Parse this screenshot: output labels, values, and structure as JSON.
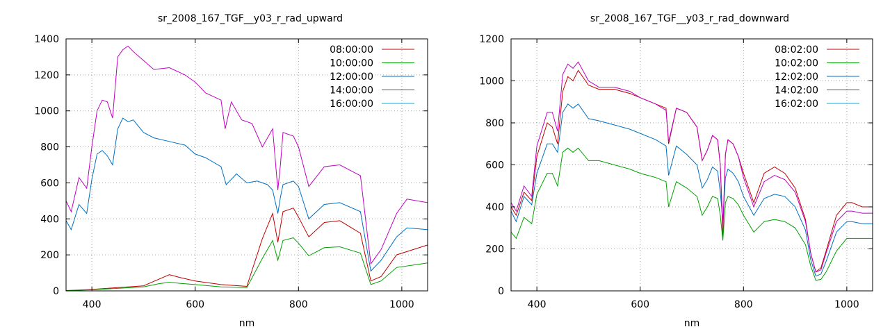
{
  "chart_data": [
    {
      "type": "line",
      "title": "sr_2008_167_TGF__y03_r_rad_upward",
      "xlabel": "nm",
      "ylabel": "",
      "xlim": [
        350,
        1050
      ],
      "ylim": [
        0,
        1400
      ],
      "xticks": [
        400,
        600,
        800,
        1000
      ],
      "yticks": [
        0,
        200,
        400,
        600,
        800,
        1000,
        1200,
        1400
      ],
      "grid": true,
      "legend_position": "top-right",
      "series": [
        {
          "name": "08:00:00",
          "color": "#c00000",
          "x": [
            350,
            400,
            450,
            500,
            530,
            550,
            570,
            600,
            650,
            700,
            730,
            750,
            760,
            770,
            790,
            800,
            820,
            850,
            880,
            920,
            940,
            960,
            990,
            1050
          ],
          "y": [
            2,
            8,
            18,
            28,
            65,
            90,
            75,
            55,
            35,
            25,
            290,
            430,
            270,
            440,
            460,
            410,
            300,
            380,
            390,
            320,
            55,
            80,
            200,
            255
          ]
        },
        {
          "name": "10:00:00",
          "color": "#00a000",
          "x": [
            350,
            400,
            450,
            500,
            530,
            550,
            570,
            600,
            650,
            700,
            730,
            750,
            760,
            770,
            790,
            800,
            820,
            850,
            880,
            920,
            940,
            960,
            990,
            1050
          ],
          "y": [
            1,
            6,
            14,
            22,
            40,
            48,
            42,
            35,
            22,
            18,
            180,
            280,
            170,
            280,
            295,
            265,
            195,
            240,
            245,
            210,
            35,
            55,
            130,
            155
          ]
        },
        {
          "name": "12:00:00",
          "color": "#0070c0",
          "x": [
            350,
            360,
            375,
            390,
            400,
            410,
            420,
            430,
            440,
            450,
            460,
            470,
            480,
            500,
            520,
            550,
            580,
            600,
            620,
            650,
            660,
            680,
            700,
            720,
            740,
            750,
            760,
            765,
            770,
            790,
            800,
            820,
            850,
            880,
            920,
            940,
            960,
            990,
            1010,
            1050
          ],
          "y": [
            390,
            340,
            480,
            430,
            620,
            760,
            780,
            750,
            700,
            900,
            960,
            940,
            950,
            880,
            850,
            830,
            810,
            760,
            740,
            690,
            590,
            650,
            600,
            610,
            590,
            560,
            430,
            520,
            590,
            610,
            580,
            400,
            480,
            490,
            440,
            110,
            170,
            300,
            350,
            340
          ]
        },
        {
          "name": "14:00:00",
          "color": "#c000c0",
          "x": [
            350,
            360,
            375,
            390,
            400,
            410,
            420,
            430,
            440,
            450,
            460,
            470,
            480,
            500,
            520,
            550,
            580,
            600,
            620,
            650,
            658,
            670,
            690,
            710,
            730,
            750,
            760,
            765,
            770,
            790,
            800,
            820,
            850,
            880,
            920,
            940,
            960,
            990,
            1010,
            1050
          ],
          "y": [
            500,
            440,
            630,
            570,
            800,
            1000,
            1060,
            1050,
            960,
            1300,
            1340,
            1360,
            1330,
            1280,
            1230,
            1240,
            1200,
            1160,
            1100,
            1060,
            900,
            1050,
            950,
            930,
            800,
            900,
            560,
            700,
            880,
            860,
            800,
            580,
            690,
            700,
            640,
            150,
            230,
            430,
            510,
            490
          ]
        },
        {
          "name": "16:00:00",
          "color": "#00b0e0",
          "x": [
            350,
            400,
            450,
            500,
            550,
            600,
            650,
            700,
            750,
            800,
            850,
            900,
            950,
            1000,
            1050
          ],
          "y": [
            0,
            0,
            0,
            0,
            0,
            0,
            0,
            0,
            0,
            0,
            0,
            0,
            0,
            0,
            0
          ]
        }
      ]
    },
    {
      "type": "line",
      "title": "sr_2008_167_TGF__y03_r_rad_downward",
      "xlabel": "nm",
      "ylabel": "",
      "xlim": [
        350,
        1050
      ],
      "ylim": [
        0,
        1200
      ],
      "xticks": [
        400,
        600,
        800,
        1000
      ],
      "yticks": [
        0,
        200,
        400,
        600,
        800,
        1000,
        1200
      ],
      "grid": true,
      "legend_position": "top-right",
      "series": [
        {
          "name": "08:02:00",
          "color": "#c00000",
          "x": [
            350,
            360,
            375,
            390,
            400,
            420,
            430,
            440,
            450,
            460,
            470,
            480,
            500,
            520,
            550,
            580,
            600,
            630,
            650,
            655,
            670,
            690,
            710,
            720,
            730,
            740,
            750,
            755,
            760,
            765,
            770,
            780,
            790,
            800,
            820,
            840,
            860,
            880,
            900,
            920,
            930,
            940,
            950,
            960,
            980,
            1000,
            1010,
            1030,
            1050
          ],
          "y": [
            400,
            360,
            470,
            430,
            640,
            800,
            780,
            700,
            950,
            1020,
            1000,
            1050,
            980,
            960,
            960,
            940,
            920,
            890,
            870,
            700,
            870,
            850,
            780,
            620,
            670,
            740,
            720,
            600,
            260,
            650,
            720,
            700,
            640,
            560,
            420,
            560,
            590,
            560,
            490,
            340,
            180,
            90,
            110,
            190,
            360,
            420,
            420,
            400,
            400
          ]
        },
        {
          "name": "10:02:00",
          "color": "#00a000",
          "x": [
            350,
            360,
            375,
            390,
            400,
            420,
            430,
            440,
            450,
            460,
            470,
            480,
            500,
            520,
            550,
            580,
            600,
            630,
            650,
            655,
            670,
            690,
            710,
            720,
            730,
            740,
            750,
            755,
            760,
            765,
            770,
            780,
            790,
            800,
            820,
            840,
            860,
            880,
            900,
            920,
            930,
            940,
            950,
            960,
            980,
            1000,
            1010,
            1030,
            1050
          ],
          "y": [
            280,
            250,
            350,
            320,
            460,
            560,
            560,
            500,
            660,
            680,
            660,
            680,
            620,
            620,
            600,
            580,
            560,
            540,
            520,
            400,
            520,
            490,
            450,
            360,
            400,
            450,
            440,
            360,
            240,
            420,
            450,
            440,
            410,
            360,
            280,
            330,
            340,
            330,
            300,
            220,
            120,
            50,
            55,
            90,
            190,
            250,
            250,
            250,
            250
          ]
        },
        {
          "name": "12:02:00",
          "color": "#0070c0",
          "x": [
            350,
            360,
            375,
            390,
            400,
            420,
            430,
            440,
            450,
            460,
            470,
            480,
            500,
            520,
            550,
            580,
            600,
            630,
            650,
            655,
            670,
            690,
            710,
            720,
            730,
            740,
            750,
            755,
            760,
            765,
            770,
            780,
            790,
            800,
            820,
            840,
            860,
            880,
            900,
            920,
            930,
            940,
            950,
            960,
            980,
            1000,
            1010,
            1030,
            1050
          ],
          "y": [
            380,
            330,
            450,
            410,
            560,
            700,
            700,
            660,
            850,
            890,
            870,
            890,
            820,
            810,
            790,
            770,
            750,
            720,
            690,
            550,
            690,
            650,
            600,
            490,
            530,
            590,
            570,
            470,
            330,
            540,
            580,
            560,
            520,
            450,
            360,
            440,
            460,
            450,
            400,
            290,
            150,
            70,
            80,
            140,
            280,
            330,
            330,
            320,
            320
          ]
        },
        {
          "name": "14:02:00",
          "color": "#c000c0",
          "x": [
            350,
            360,
            375,
            390,
            400,
            420,
            430,
            440,
            450,
            460,
            470,
            480,
            500,
            520,
            550,
            580,
            600,
            630,
            650,
            655,
            670,
            690,
            710,
            720,
            730,
            740,
            750,
            755,
            760,
            765,
            770,
            780,
            790,
            800,
            820,
            840,
            860,
            880,
            900,
            920,
            930,
            940,
            950,
            960,
            980,
            1000,
            1010,
            1030,
            1050
          ],
          "y": [
            420,
            380,
            500,
            450,
            690,
            850,
            850,
            760,
            1030,
            1080,
            1060,
            1090,
            1000,
            970,
            970,
            950,
            920,
            890,
            860,
            710,
            870,
            850,
            780,
            620,
            670,
            740,
            720,
            600,
            300,
            650,
            720,
            700,
            640,
            540,
            400,
            520,
            550,
            530,
            470,
            330,
            180,
            90,
            100,
            180,
            330,
            380,
            380,
            370,
            370
          ]
        },
        {
          "name": "16:02:00",
          "color": "#00b0e0",
          "x": [
            350,
            400,
            450,
            500,
            550,
            600,
            650,
            700,
            750,
            800,
            850,
            900,
            950,
            1000,
            1050
          ],
          "y": [
            0,
            0,
            0,
            0,
            0,
            0,
            0,
            0,
            0,
            0,
            0,
            0,
            0,
            0,
            0
          ]
        }
      ]
    }
  ]
}
